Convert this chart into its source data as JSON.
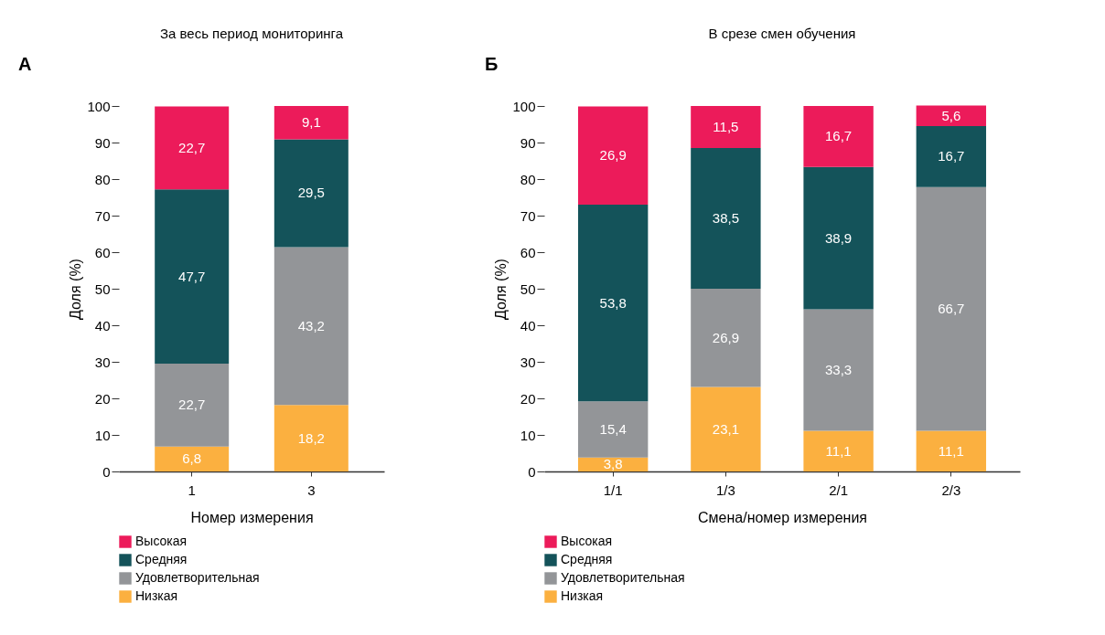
{
  "chart_data": [
    {
      "type": "bar",
      "stacked": true,
      "title": "За весь период мониторинга",
      "xlabel": "Номер измерения",
      "ylabel": "Доля (%)",
      "categories": [
        "1",
        "3"
      ],
      "series": [
        {
          "name": "Низкая",
          "color": "#fbb040",
          "values": [
            6.8,
            18.2
          ],
          "value_labels": [
            "6,8",
            "18,2"
          ]
        },
        {
          "name": "Удовлетворительная",
          "color": "#939598",
          "values": [
            22.7,
            43.2
          ],
          "value_labels": [
            "22,7",
            "43,2"
          ]
        },
        {
          "name": "Средняя",
          "color": "#14535a",
          "values": [
            47.7,
            29.5
          ],
          "value_labels": [
            "47,7",
            "29,5"
          ]
        },
        {
          "name": "Высокая",
          "color": "#ec1b5a",
          "values": [
            22.7,
            9.1
          ],
          "value_labels": [
            "22,7",
            "9,1"
          ]
        }
      ],
      "ylim": [
        0,
        100
      ],
      "yticks": [
        0,
        10,
        20,
        30,
        40,
        50,
        60,
        70,
        80,
        90,
        100
      ],
      "grid": false,
      "legend": "bottom",
      "annotations": [
        "А"
      ]
    },
    {
      "type": "bar",
      "stacked": true,
      "title": "В срезе смен обучения",
      "xlabel": "Смена/номер измерения",
      "ylabel": "Доля (%)",
      "categories": [
        "1/1",
        "1/3",
        "2/1",
        "2/3"
      ],
      "series": [
        {
          "name": "Низкая",
          "color": "#fbb040",
          "values": [
            3.8,
            23.1,
            11.1,
            11.1
          ],
          "value_labels": [
            "3,8",
            "23,1",
            "11,1",
            "11,1"
          ]
        },
        {
          "name": "Удовлетворительная",
          "color": "#939598",
          "values": [
            15.4,
            26.9,
            33.3,
            66.7
          ],
          "value_labels": [
            "15,4",
            "26,9",
            "33,3",
            "66,7"
          ]
        },
        {
          "name": "Средняя",
          "color": "#14535a",
          "values": [
            53.8,
            38.5,
            38.9,
            16.7
          ],
          "value_labels": [
            "53,8",
            "38,5",
            "38,9",
            "16,7"
          ]
        },
        {
          "name": "Высокая",
          "color": "#ec1b5a",
          "values": [
            26.9,
            11.5,
            16.7,
            5.6
          ],
          "value_labels": [
            "26,9",
            "11,5",
            "16,7",
            "5,6"
          ]
        }
      ],
      "ylim": [
        0,
        100
      ],
      "yticks": [
        0,
        10,
        20,
        30,
        40,
        50,
        60,
        70,
        80,
        90,
        100
      ],
      "grid": false,
      "legend": "bottom",
      "annotations": [
        "Б"
      ]
    }
  ]
}
